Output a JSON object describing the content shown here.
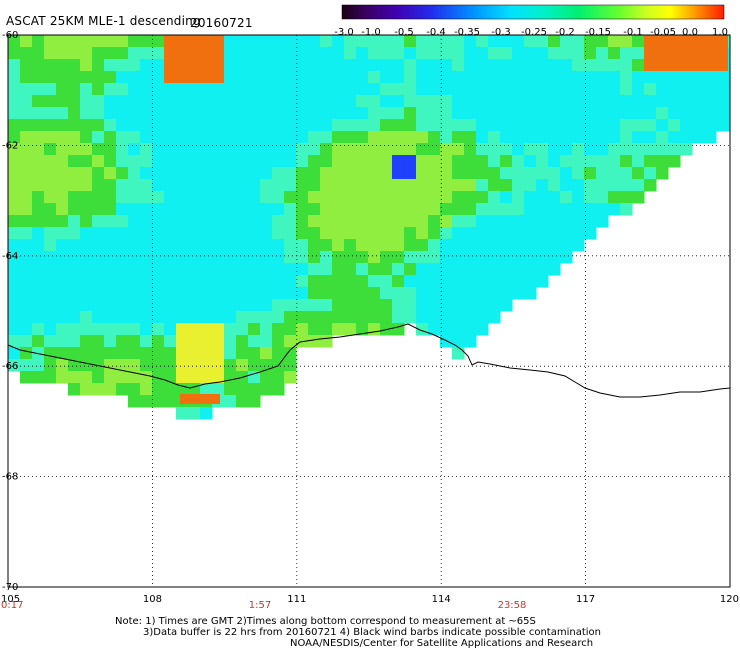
{
  "header": {
    "title": "ASCAT 25KM MLE-1 descending",
    "date": "20160721"
  },
  "colorbar": {
    "labels": [
      "-3.0",
      "-1.0",
      "-0.5",
      "-0.4",
      "-0.35",
      "-0.3",
      "-0.25",
      "-0.2",
      "-0.15",
      "-0.1",
      "-0.05",
      "0.0",
      "1.0"
    ],
    "colors": [
      "#1a0010",
      "#3a0060",
      "#5a00a8",
      "#2020e0",
      "#0070f0",
      "#00b0ff",
      "#00f0f0",
      "#00f0a0",
      "#40ff40",
      "#a0ff20",
      "#ffff00",
      "#ff9000",
      "#ff2000"
    ]
  },
  "axes": {
    "lon_ticks": [
      "105",
      "108",
      "111",
      "114",
      "117",
      "120"
    ],
    "lat_ticks": [
      "-60",
      "-62",
      "-64",
      "-66",
      "-68",
      "-70"
    ],
    "time_labels": [
      "0:17",
      "1:57",
      "23:58"
    ]
  },
  "map": {
    "lon_range": [
      105,
      120
    ],
    "lat_range": [
      -60,
      -70
    ],
    "field_palette": {
      "green": "#3ddd3a",
      "lime": "#90ee40",
      "cyan": "#10f0f0",
      "aqua": "#40f6c0",
      "yellow": "#e8f030",
      "orange": "#f07010",
      "blue": "#1070ff",
      "deep_blue": "#2040ff"
    },
    "coastline_color": "#000000"
  },
  "footer": {
    "note_line1": "Note: 1) Times are GMT 2)Times along bottom correspond to measurement at ~65S",
    "note_line2": "3)Data buffer is 22 hrs from 20160721 4) Black wind barbs indicate possible contamination",
    "credit": "NOAA/NESDIS/Center for Satellite Applications and Research"
  }
}
